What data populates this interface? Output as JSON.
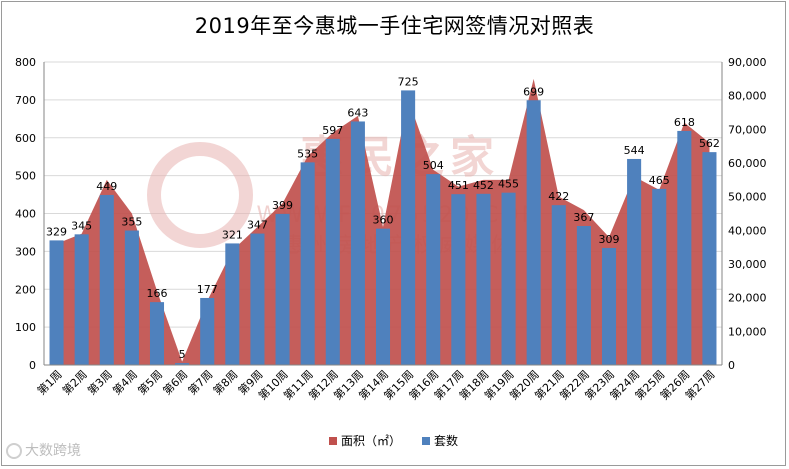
{
  "chart_data": {
    "type": "bar-area",
    "title": "2019年至今惠城一手住宅网签情况对照表",
    "categories": [
      "第1周",
      "第2周",
      "第3周",
      "第4周",
      "第5周",
      "第6周",
      "第7周",
      "第8周",
      "第9周",
      "第10周",
      "第11周",
      "第12周",
      "第13周",
      "第14周",
      "第15周",
      "第16周",
      "第17周",
      "第18周",
      "第19周",
      "第20周",
      "第21周",
      "第22周",
      "第23周",
      "第24周",
      "第25周",
      "第26周",
      "第27周"
    ],
    "series": [
      {
        "name": "面积（㎡）",
        "kind": "area",
        "axis": "right",
        "color": "#c0504d",
        "values": [
          36000,
          39000,
          55000,
          45000,
          22000,
          1000,
          19000,
          34000,
          41000,
          48000,
          62000,
          69000,
          74000,
          41000,
          79000,
          58000,
          53000,
          55000,
          55000,
          85000,
          50000,
          46000,
          38000,
          56000,
          52000,
          72000,
          66000
        ]
      },
      {
        "name": "套数",
        "kind": "bar",
        "axis": "left",
        "color": "#4f81bd",
        "values": [
          329,
          345,
          449,
          355,
          166,
          5,
          177,
          321,
          347,
          399,
          535,
          597,
          643,
          360,
          725,
          504,
          451,
          452,
          455,
          699,
          422,
          367,
          309,
          544,
          465,
          618,
          562
        ],
        "labels": [
          "329",
          "345",
          "449",
          "355",
          "166",
          "5",
          "177",
          "321",
          "347",
          "399",
          "535",
          "597",
          "643",
          "360",
          "725",
          "504",
          "451",
          "452",
          "455",
          "699",
          "422",
          "367",
          "309",
          "544",
          "465",
          "618",
          "562"
        ]
      }
    ],
    "y_left": {
      "min": 0,
      "max": 800,
      "step": 100,
      "ticks": [
        "0",
        "100",
        "200",
        "300",
        "400",
        "500",
        "600",
        "700",
        "800"
      ]
    },
    "y_right": {
      "min": 0,
      "max": 90000,
      "step": 10000,
      "ticks": [
        "0",
        "10,000",
        "20,000",
        "30,000",
        "40,000",
        "50,000",
        "60,000",
        "70,000",
        "80,000",
        "90,000"
      ]
    },
    "grid": true,
    "legend_position": "bottom"
  },
  "colors": {
    "area": "#c0504d",
    "bar": "#4f81bd",
    "grid": "#d9d9d9",
    "axis": "#868686"
  },
  "watermark": {
    "name": "惠民之家",
    "url": "WWW.F2075520.COM",
    "slogan": "惠州房地产权威媒体"
  },
  "footer": {
    "logo_text": "大数跨境"
  }
}
